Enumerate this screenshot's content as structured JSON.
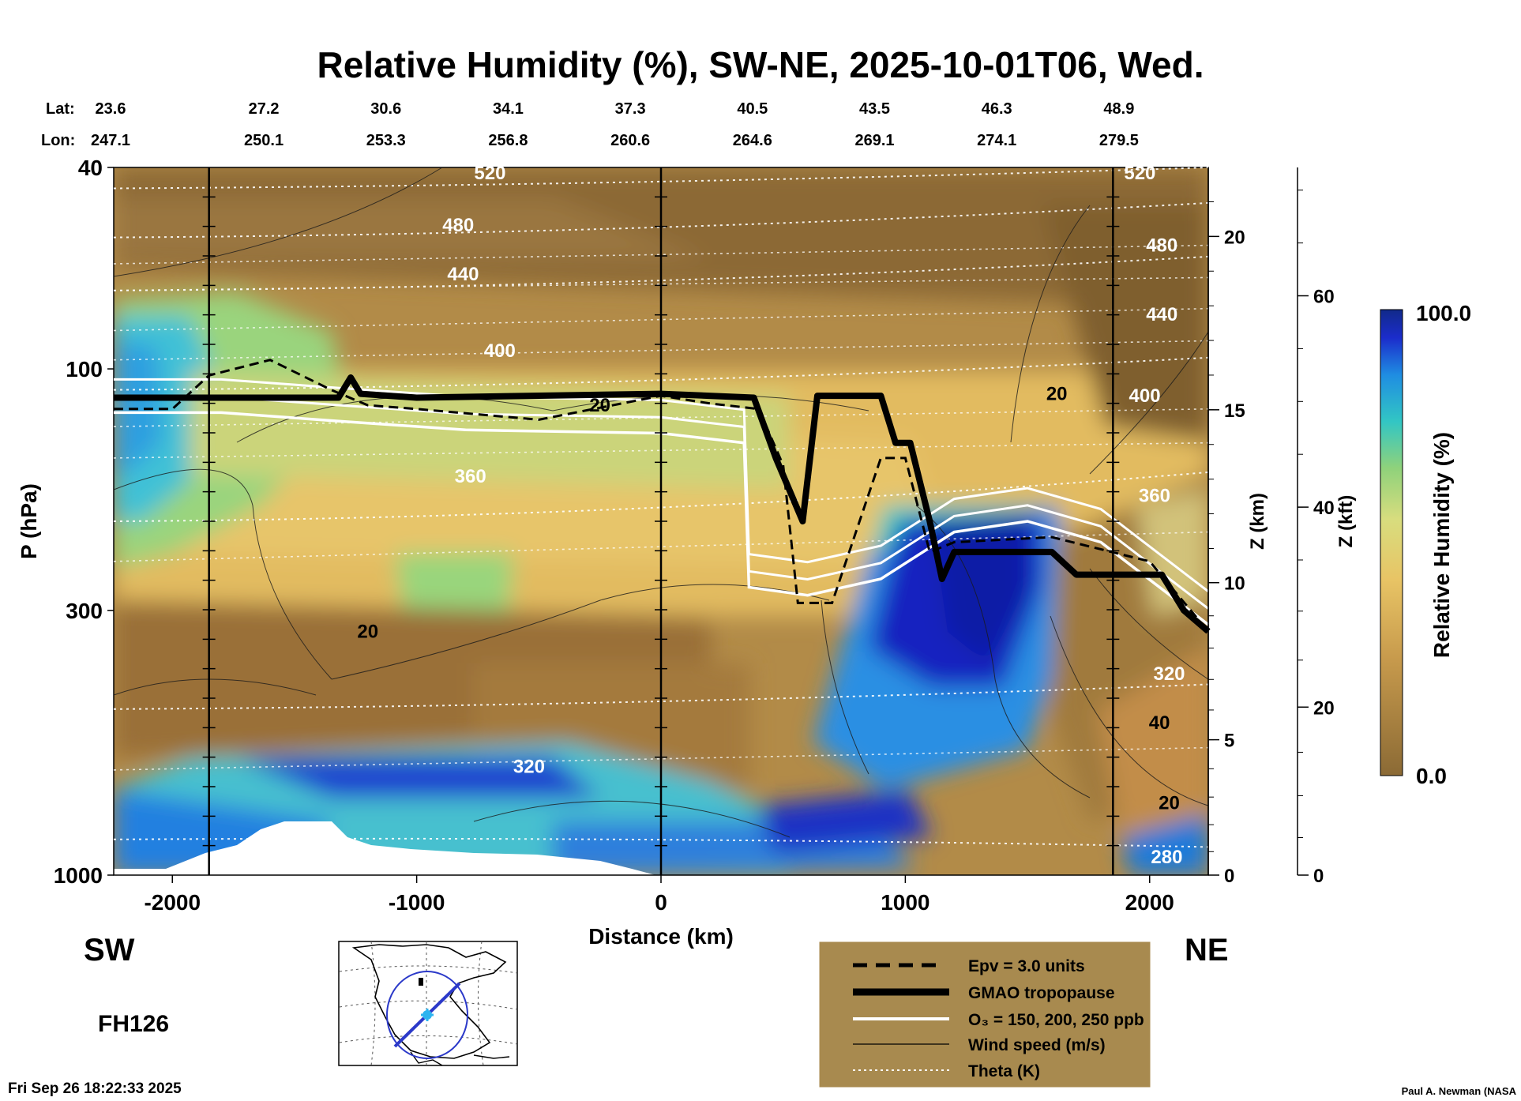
{
  "chart_data": {
    "type": "heatmap",
    "title": "Relative Humidity (%), SW-NE, 2025-10-01T06, Wed.",
    "xlabel": "Distance (km)",
    "ylabel": "P (hPa)",
    "right_axis_z_km_label": "Z (km)",
    "right_axis_z_kft_label": "Z (kft)",
    "colorbar_label": "Relative Humidity (%)",
    "colorbar_max_label": "100.0",
    "colorbar_min_label": "0.0",
    "colorbar_range": [
      0,
      100
    ],
    "xlim": [
      -2240,
      2240
    ],
    "ylim_pressure": [
      1000,
      40
    ],
    "y_scale": "log",
    "x_ticks": [
      -2000,
      -1000,
      0,
      1000,
      2000
    ],
    "x_tick_labels": [
      "-2000",
      "-1000",
      "0",
      "1000",
      "2000"
    ],
    "y_ticks": [
      40,
      100,
      300,
      1000
    ],
    "y_tick_labels": [
      "40",
      "100",
      "300",
      "1000"
    ],
    "z_km_ticks": [
      0,
      5,
      10,
      15,
      20
    ],
    "z_km_tick_labels": [
      "0",
      "5",
      "10",
      "15",
      "20"
    ],
    "z_kft_ticks": [
      0,
      20,
      40,
      60
    ],
    "z_kft_tick_labels": [
      "0",
      "20",
      "40",
      "60"
    ],
    "lat_label": "Lat:",
    "lon_label": "Lon:",
    "lat_values": [
      "23.6",
      "27.2",
      "30.6",
      "34.1",
      "37.3",
      "40.5",
      "43.5",
      "46.3",
      "48.9"
    ],
    "lon_values": [
      "247.1",
      "250.1",
      "253.3",
      "256.8",
      "260.6",
      "264.6",
      "269.1",
      "274.1",
      "279.5"
    ],
    "ticks_distance": [
      -2210,
      -1700,
      -1200,
      -700,
      -200,
      300,
      800,
      1300,
      1800
    ],
    "vertical_lines_km": [
      -1850,
      0,
      1850
    ],
    "tropopause_hpa": [
      [
        -2240,
        114
      ],
      [
        -1320,
        114
      ],
      [
        -1270,
        104
      ],
      [
        -1230,
        112
      ],
      [
        -1000,
        114
      ],
      [
        0,
        112
      ],
      [
        380,
        114
      ],
      [
        470,
        150
      ],
      [
        580,
        200
      ],
      [
        640,
        113
      ],
      [
        900,
        113
      ],
      [
        960,
        140
      ],
      [
        1020,
        140
      ],
      [
        1100,
        200
      ],
      [
        1150,
        260
      ],
      [
        1200,
        230
      ],
      [
        1600,
        230
      ],
      [
        1700,
        255
      ],
      [
        2050,
        255
      ],
      [
        2140,
        300
      ],
      [
        2240,
        330
      ]
    ],
    "epv_hpa": [
      [
        -2240,
        120
      ],
      [
        -2000,
        120
      ],
      [
        -1850,
        103
      ],
      [
        -1600,
        96
      ],
      [
        -1350,
        110
      ],
      [
        -1200,
        118
      ],
      [
        -1000,
        120
      ],
      [
        -500,
        126
      ],
      [
        0,
        113
      ],
      [
        200,
        117
      ],
      [
        400,
        120
      ],
      [
        500,
        155
      ],
      [
        560,
        290
      ],
      [
        700,
        290
      ],
      [
        900,
        150
      ],
      [
        1000,
        150
      ],
      [
        1100,
        230
      ],
      [
        1200,
        220
      ],
      [
        1600,
        215
      ],
      [
        2000,
        240
      ],
      [
        2240,
        330
      ]
    ],
    "ozone_hpa": [
      [
        -2240,
        122
      ],
      [
        -1800,
        122
      ],
      [
        -1300,
        127
      ],
      [
        -800,
        132
      ],
      [
        0,
        134
      ],
      [
        340,
        140
      ],
      [
        360,
        270
      ],
      [
        600,
        280
      ],
      [
        900,
        260
      ],
      [
        1200,
        210
      ],
      [
        1500,
        200
      ],
      [
        1800,
        220
      ],
      [
        2240,
        320
      ]
    ],
    "theta_levels_k": [
      280,
      320,
      360,
      400,
      440,
      480,
      520
    ],
    "contour_labels": [
      {
        "text": "520",
        "x": -700,
        "p": 41
      },
      {
        "text": "480",
        "x": -830,
        "p": 52
      },
      {
        "text": "440",
        "x": -810,
        "p": 65
      },
      {
        "text": "400",
        "x": -660,
        "p": 92
      },
      {
        "text": "20",
        "x": -250,
        "p": 118
      },
      {
        "text": "360",
        "x": -780,
        "p": 163
      },
      {
        "text": "20",
        "x": -1200,
        "p": 330
      },
      {
        "text": "320",
        "x": -540,
        "p": 610
      },
      {
        "text": "520",
        "x": 1960,
        "p": 41
      },
      {
        "text": "480",
        "x": 2050,
        "p": 57
      },
      {
        "text": "440",
        "x": 2050,
        "p": 78
      },
      {
        "text": "400",
        "x": 1980,
        "p": 113
      },
      {
        "text": "20",
        "x": 1620,
        "p": 112
      },
      {
        "text": "360",
        "x": 2020,
        "p": 178
      },
      {
        "text": "320",
        "x": 2080,
        "p": 400
      },
      {
        "text": "40",
        "x": 2040,
        "p": 500
      },
      {
        "text": "20",
        "x": 2080,
        "p": 720
      },
      {
        "text": "280",
        "x": 2070,
        "p": 920
      }
    ],
    "region_label_left": "SW",
    "region_label_right": "NE",
    "forecast_hour": "FH126",
    "timestamp": "Fri Sep 26 18:22:33 2025",
    "credit": "Paul A. Newman (NASA",
    "legend": [
      {
        "label": "Epv = 3.0 units",
        "style": "dashed-black"
      },
      {
        "label": "GMAO tropopause",
        "style": "thick-black"
      },
      {
        "label": "O₃ = 150, 200, 250 ppb",
        "style": "white"
      },
      {
        "label": "Wind speed (m/s)",
        "style": "thin-black"
      },
      {
        "label": "Theta (K)",
        "style": "dotted-white"
      }
    ],
    "colors": {
      "dry": "#8b6a35",
      "mid": "#e5bd62",
      "moist_mid": "#9ed77a",
      "wet": "#28c6c8",
      "saturated": "#1212b8",
      "legend_bg": "#a88a4f"
    }
  }
}
